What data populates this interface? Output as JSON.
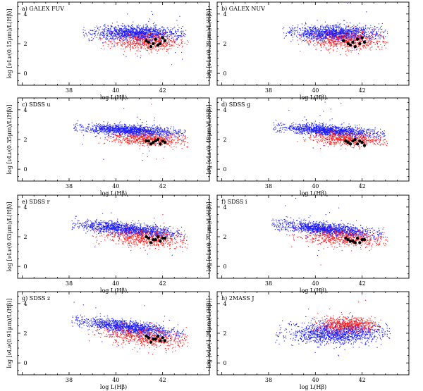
{
  "figure": {
    "colors": {
      "blue": "#1a1aff",
      "red": "#ff1a1a",
      "black": "#000000"
    }
  },
  "chart_data": [
    {
      "type": "scatter",
      "title": "a) GALEX FUV",
      "xlabel": "log L(Hβ)",
      "ylabel": "log [νLν(0.15μm)/L(Hβ)]",
      "xlim": [
        35.8,
        44.0
      ],
      "ylim": [
        -0.8,
        4.8
      ],
      "xticks": [
        38,
        40,
        42
      ],
      "yticks": [
        0,
        2,
        4
      ],
      "series": [
        {
          "name": "blue sample",
          "color": "#1a1aff",
          "x_center": 40.9,
          "x_spread": 0.9,
          "x_min": 38.6,
          "x_max": 43.0,
          "y_center": 2.7,
          "y_spread": 0.25,
          "slope": 0.0
        },
        {
          "name": "red sample",
          "color": "#ff1a1a",
          "x_center": 41.3,
          "x_spread": 0.8,
          "x_min": 39.2,
          "x_max": 43.1,
          "y_center": 2.1,
          "y_spread": 0.3,
          "slope": 0.0
        },
        {
          "name": "black points",
          "color": "#000000",
          "points": [
            [
              41.4,
              2.1
            ],
            [
              41.6,
              2.0
            ],
            [
              41.7,
              2.3
            ],
            [
              41.9,
              2.0
            ],
            [
              42.0,
              2.4
            ],
            [
              41.5,
              1.8
            ],
            [
              41.8,
              1.9
            ],
            [
              42.1,
              2.2
            ],
            [
              41.3,
              2.2
            ]
          ]
        }
      ]
    },
    {
      "type": "scatter",
      "title": "b) GALEX NUV",
      "xlabel": "log L(Hβ)",
      "ylabel": "log [νLν(0.23μm)/L(Hβ)]",
      "xlim": [
        35.8,
        44.0
      ],
      "ylim": [
        -0.8,
        4.8
      ],
      "xticks": [
        38,
        40,
        42
      ],
      "yticks": [
        0,
        2,
        4
      ],
      "series": [
        {
          "name": "blue sample",
          "color": "#1a1aff",
          "x_center": 40.9,
          "x_spread": 0.9,
          "x_min": 38.6,
          "x_max": 43.0,
          "y_center": 2.7,
          "y_spread": 0.25,
          "slope": 0.0
        },
        {
          "name": "red sample",
          "color": "#ff1a1a",
          "x_center": 41.3,
          "x_spread": 0.8,
          "x_min": 39.2,
          "x_max": 43.1,
          "y_center": 2.2,
          "y_spread": 0.3,
          "slope": 0.0
        },
        {
          "name": "black points",
          "color": "#000000",
          "points": [
            [
              41.4,
              2.0
            ],
            [
              41.6,
              2.1
            ],
            [
              41.8,
              2.3
            ],
            [
              41.9,
              2.0
            ],
            [
              42.0,
              2.4
            ],
            [
              41.5,
              1.9
            ],
            [
              41.7,
              1.8
            ],
            [
              42.1,
              2.1
            ],
            [
              41.2,
              2.2
            ]
          ]
        }
      ]
    },
    {
      "type": "scatter",
      "title": "c) SDSS u",
      "xlabel": "log L(Hβ)",
      "ylabel": "log [νLν(0.35μm)/L(Hβ)]",
      "xlim": [
        35.8,
        44.0
      ],
      "ylim": [
        -0.8,
        4.8
      ],
      "xticks": [
        38,
        40,
        42
      ],
      "yticks": [
        0,
        2,
        4
      ],
      "series": [
        {
          "name": "blue sample",
          "color": "#1a1aff",
          "x_center": 40.6,
          "x_spread": 1.0,
          "x_min": 38.2,
          "x_max": 43.0,
          "y_center": 2.6,
          "y_spread": 0.18,
          "slope": -0.08
        },
        {
          "name": "red sample",
          "color": "#ff1a1a",
          "x_center": 41.3,
          "x_spread": 0.8,
          "x_min": 39.0,
          "x_max": 43.1,
          "y_center": 2.0,
          "y_spread": 0.2,
          "slope": -0.05
        },
        {
          "name": "black points",
          "color": "#000000",
          "points": [
            [
              41.4,
              1.9
            ],
            [
              41.6,
              1.8
            ],
            [
              41.8,
              2.0
            ],
            [
              41.9,
              1.7
            ],
            [
              42.0,
              1.9
            ],
            [
              41.5,
              1.7
            ],
            [
              41.7,
              1.9
            ],
            [
              42.1,
              1.8
            ],
            [
              41.3,
              1.9
            ]
          ]
        }
      ]
    },
    {
      "type": "scatter",
      "title": "d) SDSS g",
      "xlabel": "log L(Hβ)",
      "ylabel": "log [νLν(0.48μm)/L(Hβ)]",
      "xlim": [
        35.8,
        44.0
      ],
      "ylim": [
        -0.8,
        4.8
      ],
      "xticks": [
        38,
        40,
        42
      ],
      "yticks": [
        0,
        2,
        4
      ],
      "series": [
        {
          "name": "blue sample",
          "color": "#1a1aff",
          "x_center": 40.6,
          "x_spread": 1.0,
          "x_min": 38.2,
          "x_max": 43.0,
          "y_center": 2.6,
          "y_spread": 0.18,
          "slope": -0.1
        },
        {
          "name": "red sample",
          "color": "#ff1a1a",
          "x_center": 41.3,
          "x_spread": 0.8,
          "x_min": 39.0,
          "x_max": 43.1,
          "y_center": 2.0,
          "y_spread": 0.2,
          "slope": -0.08
        },
        {
          "name": "black points",
          "color": "#000000",
          "points": [
            [
              41.4,
              1.8
            ],
            [
              41.6,
              1.9
            ],
            [
              41.8,
              1.7
            ],
            [
              41.9,
              1.9
            ],
            [
              42.0,
              1.8
            ],
            [
              41.5,
              1.7
            ],
            [
              41.7,
              2.0
            ],
            [
              42.1,
              1.6
            ],
            [
              41.3,
              1.9
            ]
          ]
        }
      ]
    },
    {
      "type": "scatter",
      "title": "e) SDSS r",
      "xlabel": "log L(Hβ)",
      "ylabel": "log [νLν(0.63μm)/L(Hβ)]",
      "xlim": [
        35.8,
        44.0
      ],
      "ylim": [
        -0.8,
        4.8
      ],
      "xticks": [
        38,
        40,
        42
      ],
      "yticks": [
        0,
        2,
        4
      ],
      "series": [
        {
          "name": "blue sample",
          "color": "#1a1aff",
          "x_center": 40.5,
          "x_spread": 1.0,
          "x_min": 38.1,
          "x_max": 43.0,
          "y_center": 2.5,
          "y_spread": 0.2,
          "slope": -0.14
        },
        {
          "name": "red sample",
          "color": "#ff1a1a",
          "x_center": 41.2,
          "x_spread": 0.9,
          "x_min": 38.8,
          "x_max": 43.1,
          "y_center": 1.9,
          "y_spread": 0.28,
          "slope": -0.1
        },
        {
          "name": "black points",
          "color": "#000000",
          "points": [
            [
              41.4,
              1.9
            ],
            [
              41.6,
              1.8
            ],
            [
              41.8,
              2.0
            ],
            [
              41.9,
              1.7
            ],
            [
              42.0,
              1.9
            ],
            [
              41.5,
              1.6
            ],
            [
              41.7,
              1.8
            ],
            [
              42.1,
              1.9
            ],
            [
              41.3,
              2.0
            ]
          ]
        }
      ]
    },
    {
      "type": "scatter",
      "title": "f) SDSS i",
      "xlabel": "log L(Hβ)",
      "ylabel": "log [νLν(0.77μm)/L(Hβ)]",
      "xlim": [
        35.8,
        44.0
      ],
      "ylim": [
        -0.8,
        4.8
      ],
      "xticks": [
        38,
        40,
        42
      ],
      "yticks": [
        0,
        2,
        4
      ],
      "series": [
        {
          "name": "blue sample",
          "color": "#1a1aff",
          "x_center": 40.5,
          "x_spread": 1.0,
          "x_min": 38.1,
          "x_max": 43.0,
          "y_center": 2.5,
          "y_spread": 0.2,
          "slope": -0.15
        },
        {
          "name": "red sample",
          "color": "#ff1a1a",
          "x_center": 41.2,
          "x_spread": 0.9,
          "x_min": 38.8,
          "x_max": 43.1,
          "y_center": 1.9,
          "y_spread": 0.28,
          "slope": -0.1
        },
        {
          "name": "black points",
          "color": "#000000",
          "points": [
            [
              41.4,
              1.8
            ],
            [
              41.6,
              1.7
            ],
            [
              41.8,
              1.9
            ],
            [
              41.9,
              1.6
            ],
            [
              42.0,
              1.8
            ],
            [
              41.5,
              1.7
            ],
            [
              41.7,
              1.6
            ],
            [
              42.1,
              1.8
            ],
            [
              41.3,
              1.9
            ]
          ]
        }
      ]
    },
    {
      "type": "scatter",
      "title": "g) SDSS z",
      "xlabel": "log L(Hβ)",
      "ylabel": "log [νLν(0.91μm)/L(Hβ)]",
      "xlim": [
        35.8,
        44.0
      ],
      "ylim": [
        -0.8,
        4.8
      ],
      "xticks": [
        38,
        40,
        42
      ],
      "yticks": [
        0,
        2,
        4
      ],
      "series": [
        {
          "name": "blue sample",
          "color": "#1a1aff",
          "x_center": 40.5,
          "x_spread": 1.0,
          "x_min": 38.1,
          "x_max": 43.0,
          "y_center": 2.4,
          "y_spread": 0.22,
          "slope": -0.2
        },
        {
          "name": "red sample",
          "color": "#ff1a1a",
          "x_center": 41.2,
          "x_spread": 0.9,
          "x_min": 38.8,
          "x_max": 43.1,
          "y_center": 1.7,
          "y_spread": 0.3,
          "slope": -0.15
        },
        {
          "name": "black points",
          "color": "#000000",
          "points": [
            [
              41.4,
              1.7
            ],
            [
              41.6,
              1.6
            ],
            [
              41.8,
              1.8
            ],
            [
              41.9,
              1.5
            ],
            [
              42.0,
              1.7
            ],
            [
              41.5,
              1.4
            ],
            [
              41.7,
              1.6
            ],
            [
              42.1,
              1.5
            ],
            [
              41.3,
              1.8
            ]
          ]
        }
      ]
    },
    {
      "type": "scatter",
      "title": "h) 2MASS J",
      "xlabel": "log L(Hβ)",
      "ylabel": "log [νLν(1.24μm)/L(Hβ)]",
      "xlim": [
        35.8,
        44.0
      ],
      "ylim": [
        -0.8,
        4.8
      ],
      "xticks": [
        38,
        40,
        42
      ],
      "yticks": [
        0,
        2,
        4
      ],
      "series": [
        {
          "name": "blue sample",
          "color": "#1a1aff",
          "x_center": 40.9,
          "x_spread": 1.0,
          "x_min": 38.3,
          "x_max": 43.2,
          "y_center": 2.0,
          "y_spread": 0.35,
          "slope": 0.0
        },
        {
          "name": "red sample",
          "color": "#ff1a1a",
          "x_center": 41.4,
          "x_spread": 0.6,
          "x_min": 39.8,
          "x_max": 42.8,
          "y_center": 2.6,
          "y_spread": 0.25,
          "slope": 0.0
        },
        {
          "name": "black points",
          "color": "#000000",
          "points": []
        }
      ]
    }
  ]
}
